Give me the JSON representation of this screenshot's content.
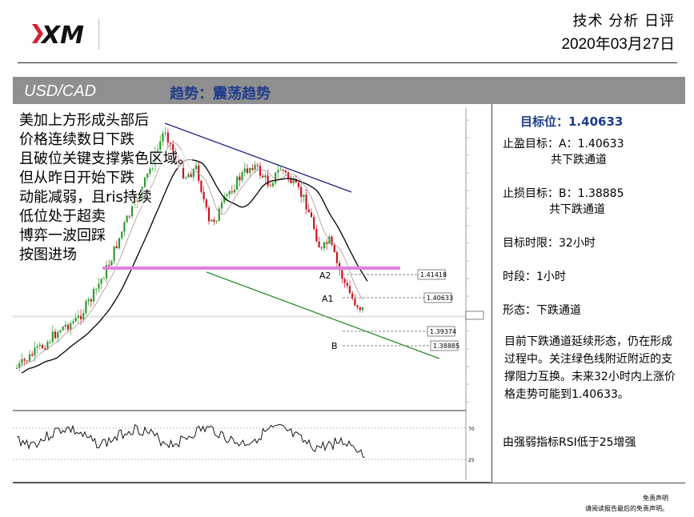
{
  "header": {
    "logo_text": "XM",
    "title": "技术 分析 日评",
    "date": "2020年03月27日"
  },
  "titlebar": {
    "pair": "USD/CAD",
    "trend": "趋势：震荡趋势"
  },
  "chart_notes": [
    "美加上方形成头部后",
    "价格连续数日下跌",
    "且破位关键支撑紫色区域。",
    "但从昨日开始下跌",
    "动能减弱，且ris持续",
    "低位处于超卖",
    "博弈一波回踩",
    "按图进场"
  ],
  "chart_labels": {
    "a2": "A2",
    "a1": "A1",
    "b": "B",
    "p1": "1.41418",
    "p2": "1.40633",
    "p3": "1.39374",
    "p4": "1.38885",
    "rsi_70": "70",
    "rsi_25": "25"
  },
  "side_panel": {
    "target": "目标位：1.40633",
    "tp_line1": "止盈目标：A：1.40633",
    "tp_line2": "共下跌通道",
    "sl_line1": "止损目标：B：1.38885",
    "sl_line2": "共下跌通道",
    "time_limit": "目标时限：32小时",
    "period": "时段：1小时",
    "pattern": "形态：下跌通道",
    "description": "目前下跌通道延续形态，仍在形成过程中。关注绿色线附近附近的支撑阻力互换。未来32小时内上涨价格走势可能到1.40633。",
    "rsi_note": "由强弱指标RSI低于25增强"
  },
  "footer": {
    "disclaimer_title": "免责声明",
    "disclaimer_text": "请阅读报告最后的免责声明。"
  }
}
